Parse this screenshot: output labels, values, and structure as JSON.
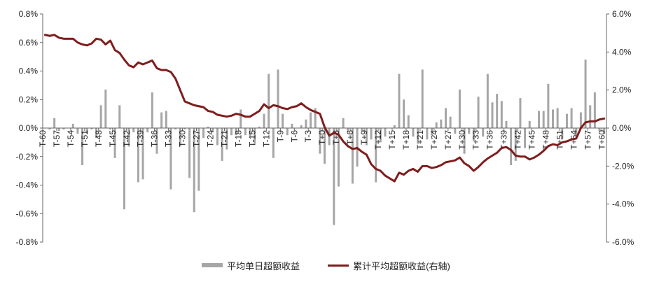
{
  "chart_data": {
    "type": "bar+line",
    "title": "",
    "x_labels": [
      "T-60",
      "T-59",
      "T-58",
      "T-57",
      "T-56",
      "T-55",
      "T-54",
      "T-53",
      "T-52",
      "T-51",
      "T-50",
      "T-49",
      "T-48",
      "T-47",
      "T-46",
      "T-45",
      "T-44",
      "T-43",
      "T-42",
      "T-41",
      "T-40",
      "T-39",
      "T-38",
      "T-37",
      "T-36",
      "T-35",
      "T-34",
      "T-33",
      "T-32",
      "T-31",
      "T-30",
      "T-29",
      "T-28",
      "T-27",
      "T-26",
      "T-25",
      "T-24",
      "T-23",
      "T-22",
      "T-21",
      "T-20",
      "T-19",
      "T-18",
      "T-17",
      "T-16",
      "T-15",
      "T-14",
      "T-13",
      "T-12",
      "T-11",
      "T-10",
      "T-9",
      "T-8",
      "T-7",
      "T-6",
      "T-5",
      "T-4",
      "T-3",
      "T-2",
      "T-1",
      "T+0",
      "T+1",
      "T+2",
      "T+3",
      "T+4",
      "T+5",
      "T+6",
      "T+7",
      "T+8",
      "T+9",
      "T+10",
      "T+11",
      "T+12",
      "T+13",
      "T+14",
      "T+15",
      "T+16",
      "T+17",
      "T+18",
      "T+19",
      "T+20",
      "T+21",
      "T+22",
      "T+23",
      "T+24",
      "T+25",
      "T+26",
      "T+27",
      "T+28",
      "T+29",
      "T+30",
      "T+31",
      "T+32",
      "T+33",
      "T+34",
      "T+35",
      "T+36",
      "T+37",
      "T+38",
      "T+39",
      "T+40",
      "T+41",
      "T+42",
      "T+43",
      "T+44",
      "T+45",
      "T+46",
      "T+47",
      "T+48",
      "T+49",
      "T+50",
      "T+51",
      "T+52",
      "T+53",
      "T+54",
      "T+55",
      "T+56",
      "T+57",
      "T+58",
      "T+59",
      "T+60"
    ],
    "tick_labels_shown": [
      "T-60",
      "T-57",
      "T-54",
      "T-51",
      "T-48",
      "T-45",
      "T-42",
      "T-39",
      "T-36",
      "T-33",
      "T-30",
      "T-27",
      "T-24",
      "T-21",
      "T-18",
      "T-15",
      "T-12",
      "T-9",
      "T-6",
      "T-3",
      "T+0",
      "T+3",
      "T+6",
      "T+9",
      "T+12",
      "T+15",
      "T+18",
      "T+21",
      "T+24",
      "T+27",
      "T+30",
      "T+33",
      "T+36",
      "T+39",
      "T+42",
      "T+45",
      "T+48",
      "T+51",
      "T+54",
      "T+57",
      "T+60"
    ],
    "left_axis": {
      "ylim": [
        -0.8,
        0.8
      ],
      "ticks": [
        "0.8%",
        "0.6%",
        "0.4%",
        "0.2%",
        "0.0%",
        "-0.2%",
        "-0.4%",
        "-0.6%",
        "-0.8%"
      ]
    },
    "right_axis": {
      "ylim": [
        -6.0,
        6.0
      ],
      "ticks": [
        "6.0%",
        "4.0%",
        "2.0%",
        "0.0%",
        "-2.0%",
        "-4.0%",
        "-6.0%"
      ]
    },
    "series": [
      {
        "name": "平均单日超额收益",
        "type": "bar",
        "axis": "left",
        "color": "#a6a6a6",
        "unit": "%",
        "values": [
          0.0,
          -0.01,
          0.07,
          -0.02,
          -0.01,
          0.0,
          0.03,
          -0.04,
          -0.26,
          -0.04,
          -0.01,
          -0.07,
          0.16,
          0.27,
          -0.01,
          -0.21,
          0.16,
          -0.57,
          -0.13,
          -0.03,
          -0.38,
          -0.36,
          -0.03,
          0.25,
          -0.18,
          0.11,
          0.12,
          -0.43,
          -0.01,
          -0.13,
          -0.01,
          -0.35,
          -0.59,
          -0.44,
          -0.07,
          0.01,
          -0.03,
          -0.12,
          -0.23,
          -0.15,
          -0.05,
          -0.05,
          0.13,
          -0.05,
          -0.06,
          -0.11,
          0.01,
          0.1,
          0.38,
          -0.21,
          0.41,
          0.1,
          -0.05,
          0.03,
          0.0,
          0.02,
          0.06,
          0.11,
          0.14,
          -0.18,
          -0.25,
          -0.12,
          -0.68,
          -0.41,
          0.07,
          -0.03,
          -0.39,
          -0.27,
          -0.02,
          -0.12,
          -0.08,
          -0.38,
          -0.1,
          -0.06,
          0.0,
          0.02,
          0.38,
          0.2,
          0.09,
          -0.06,
          -0.11,
          0.41,
          -0.08,
          -0.05,
          0.04,
          0.06,
          0.14,
          0.08,
          -0.04,
          0.27,
          -0.18,
          -0.04,
          -0.09,
          0.22,
          -0.06,
          0.38,
          0.18,
          0.24,
          0.19,
          0.05,
          -0.26,
          -0.23,
          0.21,
          -0.14,
          0.05,
          0.0,
          0.12,
          0.12,
          0.31,
          0.13,
          0.14,
          -0.08,
          0.1,
          0.14,
          -0.06,
          0.11,
          0.48,
          0.16,
          0.25,
          -0.02,
          -0.04
        ]
      },
      {
        "name": "累计平均超额收益(右轴)",
        "type": "line",
        "axis": "right",
        "color": "#7f1d1d",
        "unit": "%",
        "values": [
          4.9,
          4.85,
          4.9,
          4.75,
          4.7,
          4.7,
          4.7,
          4.5,
          4.4,
          4.35,
          4.45,
          4.7,
          4.65,
          4.4,
          4.6,
          4.1,
          3.95,
          3.6,
          3.3,
          3.2,
          3.45,
          3.35,
          3.45,
          3.55,
          3.15,
          3.05,
          3.05,
          2.95,
          2.6,
          2.0,
          1.4,
          1.3,
          1.2,
          1.15,
          1.1,
          0.9,
          0.85,
          0.7,
          0.65,
          0.6,
          0.65,
          0.75,
          0.7,
          0.6,
          0.6,
          0.75,
          0.9,
          1.25,
          1.05,
          1.2,
          1.15,
          1.05,
          1.0,
          1.1,
          1.15,
          1.3,
          1.1,
          0.95,
          0.85,
          0.75,
          0.05,
          -0.4,
          -0.25,
          -0.35,
          -0.7,
          -0.95,
          -1.1,
          -1.05,
          -1.25,
          -1.4,
          -1.9,
          -2.15,
          -2.25,
          -2.5,
          -2.65,
          -2.8,
          -2.35,
          -2.45,
          -2.25,
          -2.15,
          -2.3,
          -2.0,
          -2.0,
          -2.1,
          -2.05,
          -1.95,
          -1.8,
          -1.75,
          -1.7,
          -1.55,
          -1.85,
          -2.0,
          -2.25,
          -2.05,
          -1.8,
          -1.6,
          -1.45,
          -1.3,
          -1.05,
          -1.0,
          -1.15,
          -1.45,
          -1.5,
          -1.5,
          -1.65,
          -1.55,
          -1.4,
          -1.2,
          -0.95,
          -0.85,
          -0.9,
          -0.75,
          -0.7,
          -0.6,
          -0.55,
          0.0,
          0.3,
          0.35,
          0.35,
          0.45,
          0.5
        ]
      }
    ],
    "legend_placement": "bottom-center",
    "grid": false
  }
}
